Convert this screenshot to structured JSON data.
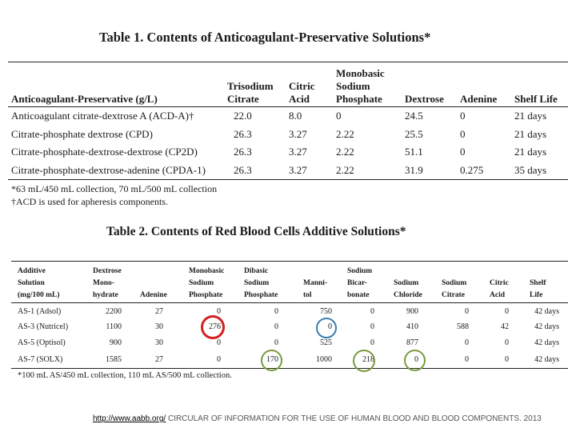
{
  "table1": {
    "title": "Table 1. Contents of Anticoagulant-Preservative Solutions*",
    "headers": {
      "solution": "Anticoagulant-Preservative (g/L)",
      "trisodium": [
        "Trisodium",
        "Citrate"
      ],
      "citric": [
        "Citric",
        "Acid"
      ],
      "monobasic": [
        "Monobasic",
        "Sodium",
        "Phosphate"
      ],
      "dextrose": "Dextrose",
      "adenine": "Adenine",
      "shelf": "Shelf Life"
    },
    "rows": [
      {
        "name": "Anticoagulant citrate-dextrose A (ACD-A)†",
        "trisodium": "22.0",
        "citric": "8.0",
        "monobasic": "0",
        "dextrose": "24.5",
        "adenine": "0",
        "shelf": "21 days"
      },
      {
        "name": "Citrate-phosphate dextrose (CPD)",
        "trisodium": "26.3",
        "citric": "3.27",
        "monobasic": "2.22",
        "dextrose": "25.5",
        "adenine": "0",
        "shelf": "21 days"
      },
      {
        "name": "Citrate-phosphate-dextrose-dextrose (CP2D)",
        "trisodium": "26.3",
        "citric": "3.27",
        "monobasic": "2.22",
        "dextrose": "51.1",
        "adenine": "0",
        "shelf": "21 days"
      },
      {
        "name": "Citrate-phosphate-dextrose-adenine (CPDA-1)",
        "trisodium": "26.3",
        "citric": "3.27",
        "monobasic": "2.22",
        "dextrose": "31.9",
        "adenine": "0.275",
        "shelf": "35 days"
      }
    ],
    "notes": [
      "*63 mL/450 mL collection, 70 mL/500 mL collection",
      "†ACD is used for apheresis components."
    ]
  },
  "table2": {
    "title": "Table 2. Contents of Red Blood Cells Additive Solutions*",
    "headers": {
      "solution": [
        "Additive",
        "Solution",
        "(mg/100 mL)"
      ],
      "dextrose": [
        "Dextrose",
        "Mono-",
        "hydrate"
      ],
      "adenine": [
        "Adenine"
      ],
      "monobasic": [
        "Monobasic",
        "Sodium",
        "Phosphate"
      ],
      "dibasic": [
        "Dibasic",
        "Sodium",
        "Phosphate"
      ],
      "mannitol": [
        "Manni-",
        "tol"
      ],
      "bicarb": [
        "Sodium",
        "Bicar-",
        "bonate"
      ],
      "chloride": [
        "Sodium",
        "Chloride"
      ],
      "citrate": [
        "Sodium",
        "Citrate"
      ],
      "citric": [
        "Citric",
        "Acid"
      ],
      "shelf": [
        "Shelf",
        "Life"
      ]
    },
    "rows": [
      {
        "name": "AS-1 (Adsol)",
        "dextrose": "2200",
        "adenine": "27",
        "monobasic": "0",
        "dibasic": "0",
        "mannitol": "750",
        "bicarb": "0",
        "chloride": "900",
        "citrate": "0",
        "citric": "0",
        "shelf": "42 days"
      },
      {
        "name": "AS-3 (Nutricel)",
        "dextrose": "1100",
        "adenine": "30",
        "monobasic": "276",
        "dibasic": "0",
        "mannitol": "0",
        "bicarb": "0",
        "chloride": "410",
        "citrate": "588",
        "citric": "42",
        "shelf": "42 days"
      },
      {
        "name": "AS-5 (Optisol)",
        "dextrose": "900",
        "adenine": "30",
        "monobasic": "0",
        "dibasic": "0",
        "mannitol": "525",
        "bicarb": "0",
        "chloride": "877",
        "citrate": "0",
        "citric": "0",
        "shelf": "42 days"
      },
      {
        "name": "AS-7 (SOLX)",
        "dextrose": "1585",
        "adenine": "27",
        "monobasic": "0",
        "dibasic": "170",
        "mannitol": "1000",
        "bicarb": "218",
        "chloride": "0",
        "citrate": "0",
        "citric": "0",
        "shelf": "42 days"
      }
    ],
    "note": "*100 mL AS/450 mL collection, 110 mL AS/500 mL collection."
  },
  "highlights": {
    "red": "#d42020",
    "blue": "#3a7fb0",
    "green": "#7a9a3a"
  },
  "footer": {
    "link": "http://www.aabb.org/",
    "text": " CIRCULAR OF INFORMATION FOR THE USE OF HUMAN BLOOD AND BLOOD COMPONENTS. 2013"
  }
}
